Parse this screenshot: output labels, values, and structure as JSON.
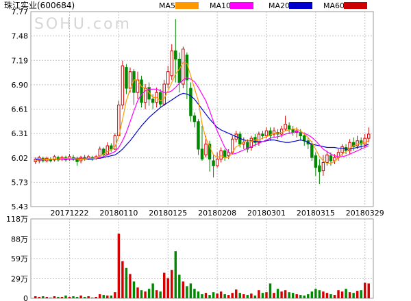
{
  "chart_data": [
    {
      "type": "candlestick",
      "title": "珠江实业(600684)",
      "watermark": "SOHU.com",
      "ylim": [
        5.43,
        7.77
      ],
      "y_ticks": [
        "7.77",
        "7.48",
        "7.19",
        "6.90",
        "6.61",
        "6.31",
        "6.02",
        "5.73",
        "5.43"
      ],
      "x_tick_labels": [
        "20171222",
        "20180110",
        "20180125",
        "20180208",
        "20180301",
        "20180315",
        "20180329"
      ],
      "x_tick_index": [
        9,
        22,
        35,
        48,
        61,
        74,
        87
      ],
      "legend": [
        {
          "name": "MA5",
          "color": "#ff9900"
        },
        {
          "name": "MA10",
          "color": "#ff00ff"
        },
        {
          "name": "MA20",
          "color": "#0000cc"
        },
        {
          "name": "MA60",
          "color": "#cc0000"
        }
      ],
      "colors": {
        "up": "#d40000",
        "down": "#008800",
        "grid": "#c0c0c0",
        "frame": "#999999"
      },
      "candles": [
        [
          5.97,
          6.0,
          6.02,
          5.94
        ],
        [
          5.98,
          6.02,
          6.04,
          5.95
        ],
        [
          6.01,
          5.98,
          6.03,
          5.96
        ],
        [
          5.98,
          6.01,
          6.03,
          5.96
        ],
        [
          6.0,
          5.98,
          6.02,
          5.96
        ],
        [
          5.99,
          6.03,
          6.05,
          5.97
        ],
        [
          6.02,
          5.99,
          6.04,
          5.97
        ],
        [
          6.0,
          6.02,
          6.04,
          5.98
        ],
        [
          6.02,
          5.99,
          6.04,
          5.97
        ],
        [
          6.0,
          6.03,
          6.06,
          5.98
        ],
        [
          6.02,
          6.0,
          6.05,
          5.98
        ],
        [
          6.01,
          5.97,
          6.03,
          5.92
        ],
        [
          5.98,
          6.02,
          6.04,
          5.95
        ],
        [
          6.02,
          6.0,
          6.05,
          5.98
        ],
        [
          6.0,
          6.03,
          6.05,
          5.99
        ],
        [
          6.02,
          6.0,
          6.04,
          5.98
        ],
        [
          6.01,
          6.03,
          6.05,
          5.99
        ],
        [
          6.04,
          6.12,
          6.15,
          6.03
        ],
        [
          6.12,
          6.05,
          6.14,
          6.03
        ],
        [
          6.06,
          6.16,
          6.2,
          6.05
        ],
        [
          6.16,
          6.12,
          6.19,
          6.09
        ],
        [
          6.12,
          6.28,
          6.31,
          6.11
        ],
        [
          6.28,
          6.65,
          6.7,
          6.27
        ],
        [
          6.65,
          7.12,
          7.18,
          6.6
        ],
        [
          7.1,
          6.85,
          7.14,
          6.78
        ],
        [
          6.85,
          7.05,
          7.1,
          6.8
        ],
        [
          7.05,
          6.8,
          7.08,
          6.65
        ],
        [
          6.8,
          6.95,
          7.05,
          6.72
        ],
        [
          6.95,
          6.68,
          7.0,
          6.62
        ],
        [
          6.68,
          6.85,
          6.9,
          6.6
        ],
        [
          6.86,
          6.72,
          6.92,
          6.64
        ],
        [
          6.72,
          6.68,
          6.78,
          6.6
        ],
        [
          6.68,
          6.8,
          6.86,
          6.62
        ],
        [
          6.8,
          6.66,
          6.84,
          6.62
        ],
        [
          6.66,
          6.9,
          6.95,
          6.64
        ],
        [
          6.9,
          7.05,
          7.12,
          6.85
        ],
        [
          7.0,
          7.3,
          7.38,
          6.95
        ],
        [
          7.3,
          7.2,
          7.68,
          6.92
        ],
        [
          7.2,
          6.92,
          7.28,
          6.8
        ],
        [
          6.9,
          7.32,
          7.35,
          6.85
        ],
        [
          7.25,
          6.95,
          7.28,
          6.72
        ],
        [
          6.85,
          6.52,
          6.92,
          6.45
        ],
        [
          6.52,
          6.45,
          6.56,
          6.38
        ],
        [
          6.45,
          6.12,
          6.48,
          6.05
        ],
        [
          6.12,
          6.0,
          6.4,
          5.98
        ],
        [
          6.05,
          6.18,
          6.28,
          6.02
        ],
        [
          6.18,
          6.0,
          6.22,
          5.85
        ],
        [
          5.98,
          5.92,
          6.05,
          5.78
        ],
        [
          5.92,
          6.0,
          6.08,
          5.9
        ],
        [
          6.0,
          6.1,
          6.14,
          5.96
        ],
        [
          6.1,
          6.02,
          6.12,
          5.98
        ],
        [
          6.04,
          6.08,
          6.12,
          6.0
        ],
        [
          6.08,
          6.24,
          6.28,
          6.06
        ],
        [
          6.24,
          6.3,
          6.34,
          6.2
        ],
        [
          6.3,
          6.18,
          6.33,
          6.14
        ],
        [
          6.18,
          6.2,
          6.26,
          6.12
        ],
        [
          6.2,
          6.12,
          6.24,
          6.08
        ],
        [
          6.14,
          6.25,
          6.28,
          6.1
        ],
        [
          6.26,
          6.2,
          6.3,
          6.15
        ],
        [
          6.2,
          6.3,
          6.33,
          6.16
        ],
        [
          6.3,
          6.28,
          6.34,
          6.24
        ],
        [
          6.28,
          6.34,
          6.38,
          6.25
        ],
        [
          6.34,
          6.28,
          6.38,
          6.22
        ],
        [
          6.3,
          6.34,
          6.38,
          6.26
        ],
        [
          6.32,
          6.3,
          6.36,
          6.24
        ],
        [
          6.3,
          6.36,
          6.4,
          6.26
        ],
        [
          6.36,
          6.42,
          6.52,
          6.34
        ],
        [
          6.4,
          6.36,
          6.44,
          6.3
        ],
        [
          6.36,
          6.32,
          6.4,
          6.28
        ],
        [
          6.32,
          6.34,
          6.38,
          6.26
        ],
        [
          6.32,
          6.28,
          6.36,
          6.22
        ],
        [
          6.28,
          6.22,
          6.32,
          6.16
        ],
        [
          6.22,
          6.18,
          6.26,
          6.12
        ],
        [
          6.18,
          6.02,
          6.22,
          5.98
        ],
        [
          6.04,
          5.9,
          6.08,
          5.8
        ],
        [
          5.92,
          5.85,
          6.0,
          5.7
        ],
        [
          5.86,
          5.96,
          6.05,
          5.8
        ],
        [
          5.96,
          6.05,
          6.1,
          5.92
        ],
        [
          6.04,
          5.98,
          6.08,
          5.92
        ],
        [
          5.98,
          6.02,
          6.06,
          5.94
        ],
        [
          6.02,
          6.08,
          6.12,
          5.98
        ],
        [
          6.08,
          6.15,
          6.18,
          6.04
        ],
        [
          6.14,
          6.1,
          6.18,
          6.06
        ],
        [
          6.1,
          6.2,
          6.24,
          6.06
        ],
        [
          6.2,
          6.15,
          6.26,
          6.1
        ],
        [
          6.16,
          6.22,
          6.28,
          6.12
        ],
        [
          6.22,
          6.18,
          6.26,
          6.12
        ],
        [
          6.18,
          6.25,
          6.3,
          6.14
        ],
        [
          6.25,
          6.3,
          6.38,
          6.2
        ]
      ],
      "ma5": [
        5.98,
        5.99,
        6.0,
        6.0,
        6.0,
        6.0,
        6.0,
        6.01,
        6.01,
        6.01,
        6.01,
        6.0,
        6.0,
        6.0,
        6.01,
        6.01,
        6.01,
        6.04,
        6.06,
        6.09,
        6.11,
        6.15,
        6.27,
        6.48,
        6.7,
        6.84,
        6.95,
        6.95,
        6.87,
        6.85,
        6.8,
        6.74,
        6.74,
        6.7,
        6.73,
        6.82,
        6.92,
        7.02,
        7.08,
        7.16,
        7.15,
        7.0,
        6.85,
        6.7,
        6.42,
        6.25,
        6.15,
        6.05,
        6.02,
        6.04,
        6.02,
        6.02,
        6.08,
        6.15,
        6.17,
        6.2,
        6.23,
        6.21,
        6.23,
        6.23,
        6.25,
        6.27,
        6.29,
        6.31,
        6.31,
        6.32,
        6.34,
        6.35,
        6.36,
        6.36,
        6.34,
        6.3,
        6.26,
        6.2,
        6.12,
        6.03,
        5.98,
        5.95,
        5.95,
        5.97,
        6.02,
        6.06,
        6.09,
        6.13,
        6.16,
        6.18,
        6.19,
        6.2,
        6.22
      ],
      "ma10": [
        5.99,
        5.99,
        5.99,
        6.0,
        6.0,
        6.0,
        6.0,
        6.0,
        6.0,
        6.0,
        6.01,
        6.01,
        6.01,
        6.01,
        6.01,
        6.01,
        6.01,
        6.02,
        6.03,
        6.05,
        6.07,
        6.09,
        6.14,
        6.22,
        6.32,
        6.45,
        6.58,
        6.7,
        6.78,
        6.82,
        6.84,
        6.84,
        6.84,
        6.82,
        6.8,
        6.8,
        6.82,
        6.86,
        6.91,
        6.95,
        6.98,
        6.96,
        6.93,
        6.86,
        6.78,
        6.7,
        6.58,
        6.45,
        6.34,
        6.24,
        6.14,
        6.08,
        6.06,
        6.07,
        6.09,
        6.11,
        6.13,
        6.15,
        6.17,
        6.19,
        6.21,
        6.23,
        6.25,
        6.26,
        6.27,
        6.28,
        6.3,
        6.31,
        6.32,
        6.33,
        6.32,
        6.31,
        6.29,
        6.26,
        6.22,
        6.17,
        6.12,
        6.09,
        6.06,
        6.04,
        6.03,
        6.03,
        6.04,
        6.06,
        6.08,
        6.1,
        6.12,
        6.14,
        6.16
      ],
      "ma20": [
        6.0,
        6.0,
        6.0,
        6.0,
        6.0,
        6.0,
        6.0,
        6.0,
        6.0,
        6.0,
        6.0,
        6.0,
        6.0,
        6.0,
        6.0,
        6.0,
        6.01,
        6.01,
        6.02,
        6.03,
        6.04,
        6.05,
        6.08,
        6.12,
        6.17,
        6.22,
        6.28,
        6.34,
        6.4,
        6.45,
        6.5,
        6.54,
        6.58,
        6.62,
        6.65,
        6.68,
        6.71,
        6.74,
        6.77,
        6.79,
        6.78,
        6.76,
        6.72,
        6.66,
        6.6,
        6.54,
        6.48,
        6.43,
        6.38,
        6.35,
        6.33,
        6.31,
        6.29,
        6.27,
        6.25,
        6.23,
        6.22,
        6.22,
        6.21,
        6.21,
        6.21,
        6.22,
        6.23,
        6.23,
        6.22,
        6.21,
        6.2,
        6.2,
        6.21,
        6.22,
        6.23,
        6.22,
        6.2,
        6.18,
        6.17,
        6.16,
        6.15,
        6.14,
        6.14,
        6.14,
        6.13,
        6.13,
        6.12,
        6.12,
        6.13,
        6.14,
        6.15,
        6.16,
        6.18
      ],
      "ma60": [],
      "volume_title": "118万",
      "volume_ylim": [
        0,
        118
      ],
      "volume_ticks": [
        "118万",
        "88万",
        "59万",
        "29万",
        "0"
      ],
      "volume_tick_values": [
        118,
        88,
        59,
        29,
        0
      ],
      "volumes": [
        3,
        2,
        3,
        2,
        1,
        3,
        2,
        2,
        4,
        2,
        3,
        2,
        4,
        2,
        3,
        1,
        2,
        6,
        5,
        4,
        4,
        9,
        96,
        55,
        45,
        36,
        25,
        16,
        12,
        10,
        14,
        22,
        12,
        10,
        38,
        30,
        42,
        70,
        35,
        25,
        18,
        22,
        14,
        10,
        6,
        8,
        5,
        9,
        7,
        10,
        6,
        5,
        8,
        13,
        8,
        6,
        5,
        7,
        4,
        12,
        8,
        9,
        22,
        8,
        14,
        10,
        12,
        9,
        8,
        6,
        5,
        4,
        6,
        10,
        14,
        12,
        10,
        8,
        6,
        5,
        12,
        10,
        14,
        9,
        8,
        11,
        12,
        23,
        22
      ]
    }
  ]
}
